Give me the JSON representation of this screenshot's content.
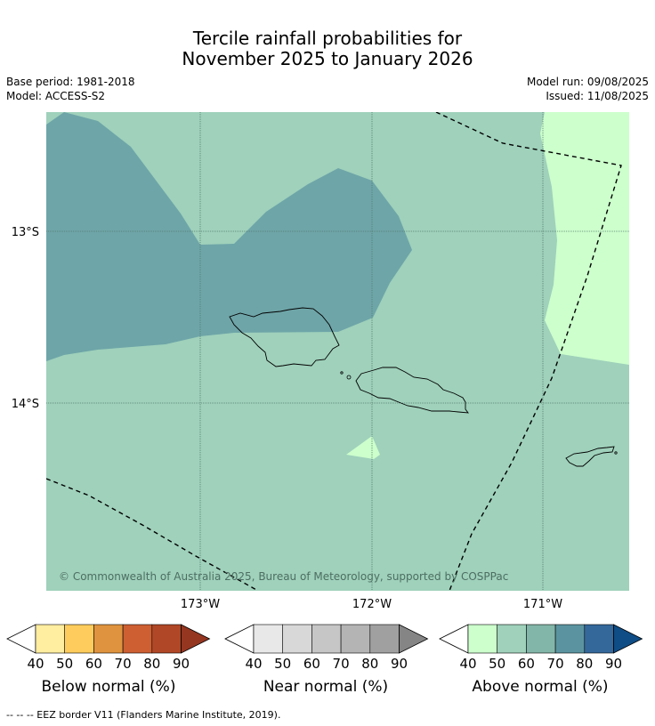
{
  "title_line1": "Tercile rainfall probabilities for",
  "title_line2": "November 2025 to January 2026",
  "base_period": "Base period: 1981-2018",
  "model": "Model: ACCESS-S2",
  "model_run": "Model run: 09/08/2025",
  "issued": "Issued: 11/08/2025",
  "lat_labels": [
    "13°S",
    "14°S"
  ],
  "lon_labels": [
    "173°W",
    "172°W",
    "171°W"
  ],
  "copyright": "© Commonwealth of Australia 2025, Bureau of Meteorology, supported by COSPPac",
  "footer_legend": "--  --  -- EEZ border V11 (Flanders Marine Institute, 2019).",
  "colorbars": [
    {
      "label": "Below normal (%)",
      "ticks": [
        "40",
        "50",
        "60",
        "70",
        "80",
        "90"
      ],
      "colors": [
        "#ffffff",
        "#ffeda0",
        "#fecc5c",
        "#e0933e",
        "#cd5f32",
        "#b04726",
        "#953621"
      ]
    },
    {
      "label": "Near normal (%)",
      "ticks": [
        "40",
        "50",
        "60",
        "70",
        "80",
        "90"
      ],
      "colors": [
        "#ffffff",
        "#e8e8e8",
        "#d8d8d8",
        "#c6c6c6",
        "#b4b4b4",
        "#a0a0a0",
        "#858585"
      ]
    },
    {
      "label": "Above normal (%)",
      "ticks": [
        "40",
        "50",
        "60",
        "70",
        "80",
        "90"
      ],
      "colors": [
        "#ffffff",
        "#ccffcc",
        "#9fd1bb",
        "#82b6a8",
        "#5b94a0",
        "#34689b",
        "#0f4d86"
      ]
    }
  ],
  "map_colors": {
    "c50": "#9fd1bb",
    "c40": "#ccffcc",
    "c70": "#6ea5a8",
    "grid": "#527a6c",
    "land": "#000000"
  }
}
